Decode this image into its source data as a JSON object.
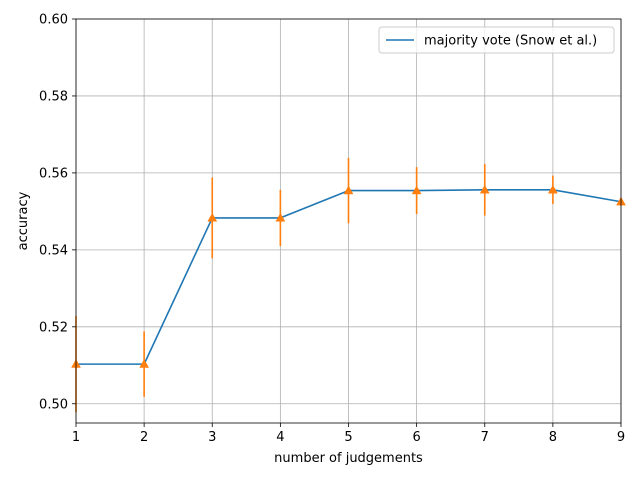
{
  "chart_data": {
    "type": "line",
    "title": "",
    "xlabel": "number of judgements",
    "ylabel": "accuracy",
    "xlim": [
      1,
      9
    ],
    "ylim": [
      0.495,
      0.6
    ],
    "xticks": [
      "1",
      "2",
      "3",
      "4",
      "5",
      "6",
      "7",
      "8",
      "9"
    ],
    "yticks": [
      "0.50",
      "0.52",
      "0.54",
      "0.56",
      "0.58",
      "0.60"
    ],
    "grid": true,
    "legend_position": "top-right",
    "series": [
      {
        "name": "majority vote (Snow et al.)",
        "x": [
          1,
          2,
          3,
          4,
          5,
          6,
          7,
          8,
          9
        ],
        "y": [
          0.5103,
          0.5103,
          0.5483,
          0.5483,
          0.5554,
          0.5554,
          0.5556,
          0.5556,
          0.5525
        ],
        "color": "#1f77b4"
      }
    ],
    "errorbars": {
      "x": [
        1,
        2,
        3,
        4,
        5,
        6,
        7,
        8,
        9
      ],
      "y": [
        0.5103,
        0.5103,
        0.5483,
        0.5483,
        0.5554,
        0.5554,
        0.5556,
        0.5556,
        0.5525
      ],
      "yerr": [
        0.0125,
        0.0085,
        0.0105,
        0.0073,
        0.0085,
        0.0061,
        0.0067,
        0.0037,
        0.001
      ],
      "marker": "triangle-up",
      "color": "#ff7f0e"
    }
  }
}
